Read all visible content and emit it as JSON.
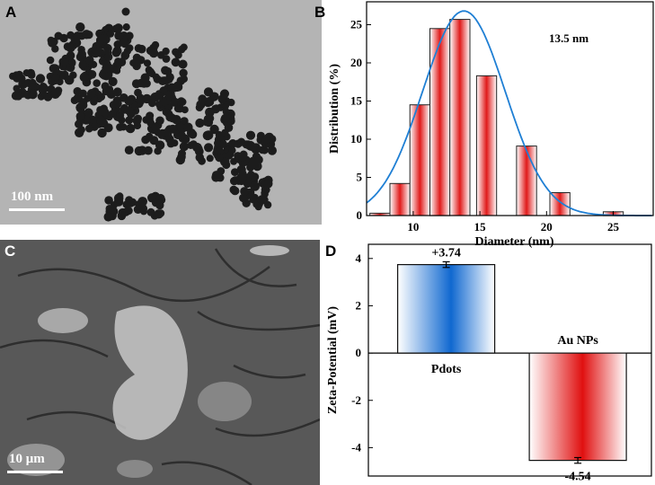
{
  "figure": {
    "panels": {
      "A": {
        "letter": "A",
        "scale_label": "100 nm"
      },
      "B": {
        "letter": "B"
      },
      "C": {
        "letter": "C",
        "scale_label": "10 μm"
      },
      "D": {
        "letter": "D"
      }
    }
  },
  "chart_data": [
    {
      "type": "bar",
      "panel": "B",
      "xlabel": "Diameter (nm)",
      "ylabel": "Distribution (%)",
      "annotation": "13.5 nm",
      "x_ticks": [
        "10",
        "15",
        "20",
        "25"
      ],
      "y_ticks": [
        "0",
        "5",
        "10",
        "15",
        "20",
        "25"
      ],
      "xlim": [
        6.5,
        28
      ],
      "ylim": [
        0,
        28
      ],
      "bins": [
        {
          "x": 7.5,
          "value": 0.3
        },
        {
          "x": 9.0,
          "value": 4.2
        },
        {
          "x": 10.5,
          "value": 14.5
        },
        {
          "x": 12.0,
          "value": 24.5
        },
        {
          "x": 13.5,
          "value": 25.7
        },
        {
          "x": 15.5,
          "value": 18.3
        },
        {
          "x": 18.5,
          "value": 9.1
        },
        {
          "x": 21.0,
          "value": 3.0
        },
        {
          "x": 25.0,
          "value": 0.5
        }
      ],
      "fit": {
        "type": "gaussian",
        "center": 13.8,
        "amplitude": 26.8,
        "sigma": 3.1,
        "color": "#1f7fd4"
      },
      "bar_color": "#e01a1a"
    },
    {
      "type": "bar",
      "panel": "D",
      "ylabel": "Zeta-Potential (mV)",
      "y_ticks": [
        "-4",
        "-2",
        "0",
        "2",
        "4"
      ],
      "ylim": [
        -5.2,
        4.6
      ],
      "bars": [
        {
          "category": "Pdots",
          "value": 3.74,
          "error": 0.12,
          "label": "+3.74",
          "color": "#1068d0"
        },
        {
          "category": "Au NPs",
          "value": -4.54,
          "error": 0.12,
          "label": "-4.54",
          "color": "#e01010"
        }
      ]
    }
  ]
}
